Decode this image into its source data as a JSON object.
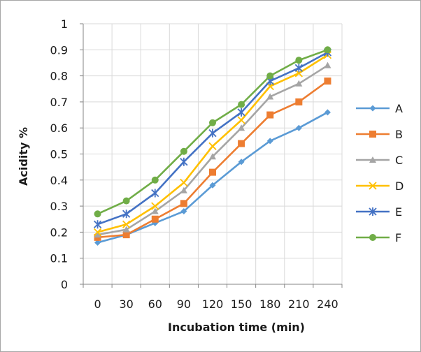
{
  "chart_data": {
    "type": "line",
    "title": "",
    "xlabel": "Incubation time (min)",
    "ylabel": "Acidity %",
    "categories": [
      "0",
      "30",
      "60",
      "90",
      "120",
      "150",
      "180",
      "210",
      "240"
    ],
    "ylim": [
      0,
      1
    ],
    "yticks": [
      "0",
      "0.1",
      "0.2",
      "0.3",
      "0.4",
      "0.5",
      "0.6",
      "0.7",
      "0.8",
      "0.9",
      "1"
    ],
    "grid": true,
    "legend_position": "right",
    "series": [
      {
        "name": "A",
        "color": "#5b9bd5",
        "marker": "diamond",
        "values": [
          0.16,
          0.19,
          0.235,
          0.28,
          0.38,
          0.47,
          0.55,
          0.6,
          0.66
        ]
      },
      {
        "name": "B",
        "color": "#ed7d31",
        "marker": "square",
        "values": [
          0.18,
          0.19,
          0.25,
          0.31,
          0.43,
          0.54,
          0.65,
          0.7,
          0.78
        ]
      },
      {
        "name": "C",
        "color": "#a5a5a5",
        "marker": "triangle",
        "values": [
          0.19,
          0.21,
          0.28,
          0.36,
          0.49,
          0.6,
          0.72,
          0.77,
          0.84
        ]
      },
      {
        "name": "D",
        "color": "#ffc000",
        "marker": "x",
        "values": [
          0.2,
          0.23,
          0.3,
          0.39,
          0.53,
          0.63,
          0.76,
          0.81,
          0.88
        ]
      },
      {
        "name": "E",
        "color": "#4472c4",
        "marker": "star",
        "values": [
          0.23,
          0.27,
          0.35,
          0.47,
          0.58,
          0.66,
          0.78,
          0.83,
          0.89
        ]
      },
      {
        "name": "F",
        "color": "#70ad47",
        "marker": "circle",
        "values": [
          0.27,
          0.32,
          0.4,
          0.51,
          0.62,
          0.69,
          0.8,
          0.86,
          0.9
        ]
      }
    ]
  }
}
